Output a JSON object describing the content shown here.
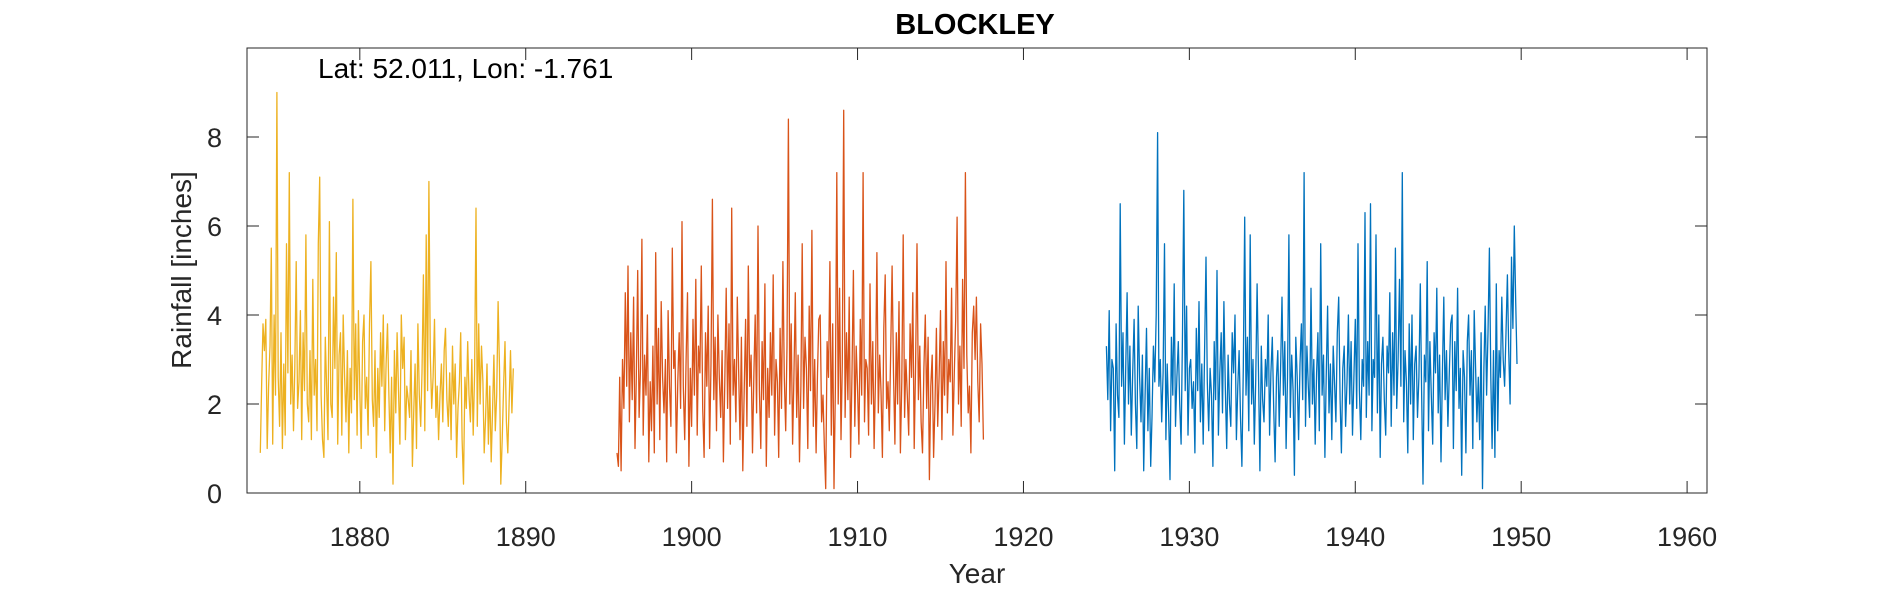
{
  "chart_data": {
    "type": "line",
    "title": "BLOCKLEY",
    "annotation": "Lat: 52.011, Lon: -1.761",
    "xlabel": "Year",
    "ylabel": "Rainfall [inches]",
    "xlim": [
      1873.2,
      1961.2
    ],
    "ylim": [
      0,
      10
    ],
    "xticks": [
      1880,
      1890,
      1900,
      1910,
      1920,
      1930,
      1940,
      1950,
      1960
    ],
    "yticks": [
      0,
      2,
      4,
      6,
      8
    ],
    "grid": false,
    "box": true,
    "series": [
      {
        "color": "#EDB120",
        "x_start": 1874.0,
        "x_step": 0.0833333,
        "values": [
          0.9,
          2.5,
          3.8,
          3.2,
          3.9,
          1.0,
          2.4,
          3.3,
          5.5,
          1.1,
          4.0,
          2.2,
          9.0,
          2.6,
          1.5,
          3.6,
          1.0,
          2.9,
          1.3,
          5.6,
          2.7,
          7.2,
          2.0,
          3.1,
          1.4,
          2.8,
          5.2,
          1.9,
          2.5,
          4.1,
          1.2,
          3.6,
          2.3,
          5.8,
          2.0,
          1.6,
          3.2,
          1.2,
          4.8,
          2.2,
          3.0,
          1.4,
          5.6,
          7.1,
          2.2,
          1.2,
          0.8,
          3.5,
          2.4,
          1.2,
          6.1,
          2.0,
          1.7,
          4.4,
          2.8,
          5.4,
          1.1,
          3.1,
          3.6,
          1.3,
          4.0,
          2.6,
          1.6,
          3.2,
          0.9,
          2.8,
          1.8,
          6.6,
          2.1,
          3.8,
          1.3,
          4.1,
          2.3,
          1.0,
          3.4,
          4.0,
          1.9,
          2.6,
          1.3,
          3.8,
          5.2,
          2.1,
          1.5,
          3.2,
          0.8,
          2.8,
          1.7,
          3.6,
          2.4,
          4.0,
          1.4,
          2.9,
          3.8,
          2.2,
          0.9,
          2.6,
          0.2,
          3.2,
          1.8,
          3.6,
          2.3,
          1.1,
          4.0,
          2.8,
          3.5,
          1.2,
          2.4,
          2.1,
          1.7,
          3.2,
          0.6,
          1.8,
          2.9,
          1.0,
          3.8,
          2.2,
          1.5,
          2.7,
          4.9,
          1.4,
          5.8,
          2.3,
          7.0,
          3.1,
          1.9,
          2.6,
          3.9,
          1.7,
          2.4,
          1.2,
          2.2,
          2.9,
          1.6,
          3.2,
          3.7,
          2.1,
          1.5,
          2.7,
          1.2,
          3.3,
          2.0,
          2.9,
          0.8,
          1.9,
          2.5,
          3.6,
          1.2,
          0.2,
          2.6,
          1.9,
          3.4,
          2.2,
          1.6,
          3.0,
          1.3,
          2.7,
          6.4,
          1.5,
          3.8,
          2.0,
          3.3,
          2.5,
          0.9,
          1.7,
          2.9,
          1.1,
          2.4,
          0.7,
          1.8,
          3.1,
          1.4,
          2.2,
          4.3,
          2.8,
          0.2,
          1.2,
          2.4,
          3.4,
          1.6,
          0.9,
          2.0,
          3.2,
          1.8,
          2.8
        ]
      },
      {
        "color": "#D95319",
        "x_start": 1895.5,
        "x_step": 0.0833333,
        "values": [
          0.9,
          0.6,
          2.6,
          0.5,
          3.0,
          1.9,
          4.5,
          2.4,
          5.1,
          1.6,
          3.6,
          2.1,
          4.4,
          1.0,
          2.6,
          5.0,
          1.7,
          2.8,
          5.7,
          1.3,
          3.1,
          2.2,
          4.0,
          0.7,
          2.5,
          1.4,
          3.3,
          0.9,
          5.4,
          2.0,
          3.7,
          1.2,
          4.3,
          2.6,
          1.8,
          3.0,
          0.7,
          4.1,
          2.4,
          1.5,
          5.5,
          2.8,
          3.2,
          0.9,
          2.5,
          3.6,
          1.9,
          6.1,
          2.4,
          1.2,
          3.0,
          4.5,
          0.6,
          2.8,
          1.5,
          3.9,
          2.2,
          4.8,
          1.3,
          3.3,
          2.7,
          5.1,
          1.9,
          0.8,
          3.6,
          2.4,
          4.2,
          1.0,
          2.9,
          6.6,
          2.1,
          3.5,
          1.4,
          4.0,
          2.6,
          1.7,
          3.2,
          0.7,
          2.5,
          4.6,
          1.9,
          3.8,
          1.1,
          6.4,
          2.2,
          3.0,
          1.6,
          4.4,
          2.8,
          1.2,
          3.5,
          0.5,
          2.3,
          3.9,
          1.5,
          5.1,
          2.4,
          3.1,
          0.9,
          2.7,
          4.0,
          1.8,
          6.0,
          2.3,
          1.0,
          3.4,
          2.1,
          4.7,
          0.6,
          2.8,
          1.7,
          3.6,
          2.2,
          4.9,
          1.3,
          3.0,
          2.5,
          0.8,
          3.7,
          1.9,
          5.2,
          2.6,
          1.4,
          3.3,
          8.4,
          2.0,
          3.8,
          1.1,
          2.6,
          4.5,
          1.7,
          3.1,
          0.7,
          2.4,
          5.6,
          1.9,
          3.5,
          2.8,
          1.0,
          4.2,
          2.3,
          5.9,
          1.5,
          3.0,
          0.9,
          2.7,
          3.9,
          4.0,
          1.6,
          2.2,
          1.0,
          0.1,
          3.4,
          2.6,
          5.2,
          1.3,
          3.8,
          0.1,
          2.4,
          7.2,
          2.0,
          4.6,
          1.2,
          2.9,
          8.6,
          1.7,
          3.6,
          2.1,
          4.4,
          0.8,
          2.7,
          5.0,
          1.5,
          3.3,
          2.4,
          1.1,
          3.9,
          2.2,
          7.2,
          1.6,
          3.0,
          2.8,
          1.3,
          4.7,
          2.0,
          3.4,
          1.0,
          2.6,
          5.4,
          1.8,
          3.1,
          2.3,
          0.8,
          3.7,
          4.9,
          1.9,
          2.5,
          1.4,
          3.2,
          5.1,
          2.7,
          1.1,
          3.6,
          2.0,
          4.3,
          0.9,
          2.5,
          5.8,
          1.7,
          3.0,
          2.2,
          1.3,
          3.8,
          2.6,
          4.5,
          1.0,
          2.9,
          5.6,
          2.1,
          3.3,
          1.6,
          0.9,
          2.8,
          4.0,
          1.9,
          3.5,
          0.3,
          2.4,
          3.1,
          0.8,
          2.0,
          3.7,
          1.5,
          2.6,
          4.1,
          1.2,
          3.4,
          2.2,
          5.2,
          1.8,
          3.0,
          2.5,
          4.6,
          1.3,
          2.7,
          3.9,
          6.2,
          2.0,
          3.3,
          1.5,
          4.8,
          2.8,
          7.2,
          3.1,
          1.8,
          2.4,
          0.9,
          3.6,
          4.2,
          3.0,
          4.4,
          2.5,
          1.6,
          3.8,
          2.9,
          1.2
        ]
      },
      {
        "color": "#0072BD",
        "x_start": 1925.0,
        "x_step": 0.0833333,
        "values": [
          3.3,
          2.1,
          4.1,
          1.4,
          3.0,
          2.8,
          0.5,
          3.8,
          2.2,
          1.7,
          6.5,
          2.4,
          3.6,
          1.1,
          2.9,
          4.5,
          2.0,
          3.3,
          1.3,
          2.7,
          3.9,
          2.0,
          1.0,
          4.2,
          2.6,
          1.6,
          3.1,
          0.5,
          2.2,
          3.7,
          1.4,
          2.8,
          0.6,
          1.7,
          3.3,
          2.5,
          4.0,
          8.1,
          2.4,
          3.0,
          1.6,
          2.7,
          5.6,
          1.2,
          2.9,
          1.8,
          0.3,
          3.5,
          2.2,
          4.7,
          1.5,
          2.6,
          3.4,
          2.0,
          1.1,
          3.6,
          6.8,
          2.3,
          4.2,
          1.3,
          2.8,
          3.0,
          1.9,
          2.5,
          0.9,
          3.7,
          2.3,
          4.3,
          1.6,
          2.9,
          1.1,
          3.2,
          5.3,
          2.5,
          1.4,
          2.8,
          2.2,
          0.6,
          3.4,
          2.1,
          5.0,
          1.3,
          2.7,
          3.6,
          1.8,
          4.3,
          2.4,
          1.0,
          3.1,
          2.0,
          1.5,
          3.6,
          2.7,
          4.0,
          1.2,
          2.4,
          3.2,
          1.7,
          0.6,
          2.8,
          6.2,
          2.2,
          3.5,
          1.4,
          5.8,
          2.0,
          3.0,
          1.1,
          2.5,
          4.7,
          2.7,
          0.5,
          3.3,
          2.1,
          1.6,
          3.0,
          2.4,
          4.0,
          1.3,
          2.7,
          3.5,
          1.9,
          0.7,
          2.6,
          3.2,
          1.5,
          2.8,
          4.4,
          2.2,
          3.4,
          1.0,
          2.6,
          5.8,
          1.7,
          3.1,
          2.3,
          0.4,
          3.5,
          2.6,
          1.2,
          2.9,
          3.8,
          2.1,
          7.2,
          1.5,
          3.3,
          2.4,
          1.7,
          4.6,
          2.0,
          3.0,
          1.1,
          2.7,
          3.6,
          1.4,
          5.6,
          2.2,
          3.1,
          0.8,
          2.6,
          4.2,
          1.8,
          2.9,
          1.2,
          3.3,
          2.5,
          1.6,
          3.6,
          4.4,
          2.1,
          0.9,
          2.8,
          3.3,
          1.5,
          2.5,
          4.0,
          2.0,
          3.4,
          1.3,
          2.6,
          3.9,
          1.9,
          5.6,
          2.3,
          1.2,
          3.0,
          2.4,
          6.3,
          1.7,
          3.4,
          2.2,
          6.5,
          1.4,
          3.0,
          2.6,
          5.8,
          1.8,
          4.0,
          0.8,
          2.9,
          3.5,
          2.1,
          1.3,
          3.3,
          2.7,
          4.5,
          1.5,
          3.6,
          2.2,
          5.5,
          1.9,
          3.0,
          4.8,
          2.4,
          7.2,
          1.6,
          3.2,
          2.5,
          0.9,
          3.8,
          2.0,
          4.0,
          1.2,
          2.9,
          3.3,
          1.7,
          2.6,
          4.7,
          2.3,
          0.2,
          3.1,
          2.5,
          5.2,
          1.4,
          3.4,
          2.2,
          1.1,
          3.6,
          2.7,
          4.6,
          1.8,
          3.1,
          0.7,
          2.7,
          4.4,
          2.1,
          3.2,
          1.5,
          2.7,
          3.8,
          4.0,
          1.0,
          3.4,
          2.3,
          4.6,
          1.9,
          2.8,
          0.4,
          3.2,
          2.6,
          0.9,
          3.4,
          4.0,
          2.2,
          3.2,
          1.0,
          4.1,
          2.8,
          1.6,
          2.6,
          1.2,
          3.6,
          0.1,
          2.8,
          4.2,
          2.2,
          3.6,
          5.5,
          2.6,
          1.0,
          3.2,
          0.8,
          4.7,
          1.4,
          3.2,
          2.6,
          4.4,
          3.0,
          2.4,
          3.6,
          4.9,
          3.2,
          2.0,
          5.3,
          3.7,
          6.0,
          4.3,
          2.9
        ]
      }
    ]
  }
}
